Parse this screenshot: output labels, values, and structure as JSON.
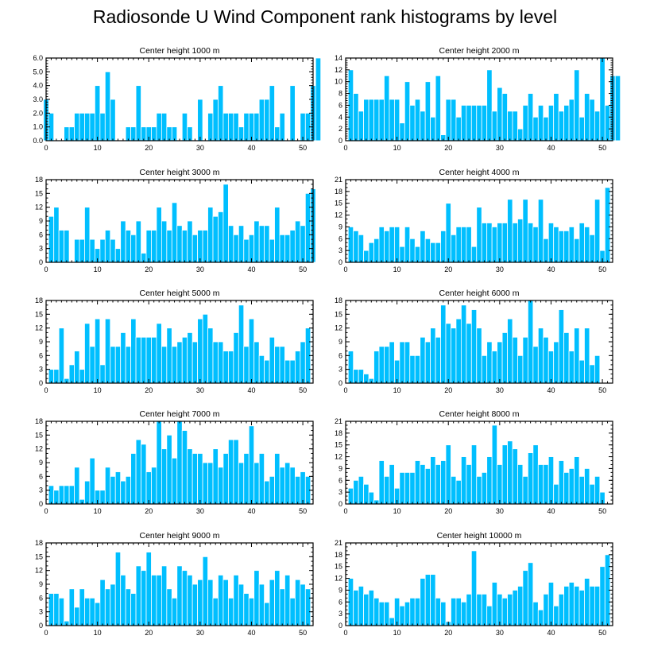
{
  "title": "Radiosonde U Wind Component rank histograms by level",
  "colors": {
    "bar": "#00bfff",
    "frame": "#000000",
    "bar_edge": "#ffffff"
  },
  "chart_data": [
    {
      "type": "bar",
      "title": "Center height 1000 m",
      "xlabel": "",
      "ylabel": "",
      "xlim": [
        0,
        52
      ],
      "ylim": [
        0,
        6
      ],
      "yticks": [
        "0.0",
        "1.0",
        "2.0",
        "3.0",
        "4.0",
        "5.0",
        "6.0"
      ],
      "yticks_val": [
        0,
        1,
        2,
        3,
        4,
        5,
        6
      ],
      "xticks": [
        0,
        10,
        20,
        30,
        40,
        50
      ],
      "values": [
        3,
        2,
        0,
        0,
        1,
        1,
        2,
        2,
        2,
        2,
        4,
        2,
        5,
        3,
        0,
        0,
        1,
        1,
        4,
        1,
        1,
        1,
        2,
        2,
        1,
        1,
        0,
        2,
        1,
        0,
        3,
        0,
        2,
        3,
        4,
        2,
        2,
        2,
        1,
        2,
        2,
        2,
        3,
        3,
        4,
        1,
        2,
        0,
        4,
        0,
        2,
        2,
        4,
        6
      ],
      "xstart": 0
    },
    {
      "type": "bar",
      "title": "Center height 2000 m",
      "xlabel": "",
      "ylabel": "",
      "xlim": [
        0,
        52
      ],
      "ylim": [
        0,
        14
      ],
      "yticks": [
        "0",
        "2",
        "4",
        "6",
        "8",
        "10",
        "12",
        "14"
      ],
      "yticks_val": [
        0,
        2,
        4,
        6,
        8,
        10,
        12,
        14
      ],
      "xticks": [
        0,
        10,
        20,
        30,
        40,
        50
      ],
      "values": [
        12,
        8,
        5,
        7,
        7,
        7,
        7,
        11,
        7,
        7,
        3,
        10,
        6,
        7,
        5,
        10,
        4,
        11,
        1,
        7,
        7,
        4,
        6,
        6,
        6,
        6,
        6,
        12,
        5,
        9,
        8,
        5,
        5,
        2,
        6,
        8,
        4,
        6,
        4,
        6,
        8,
        5,
        6,
        7,
        12,
        4,
        8,
        7,
        5,
        14,
        6,
        11,
        11
      ],
      "xstart": 1
    },
    {
      "type": "bar",
      "title": "Center height 3000 m",
      "xlabel": "",
      "ylabel": "",
      "xlim": [
        0,
        52
      ],
      "ylim": [
        0,
        18
      ],
      "yticks": [
        "0",
        "3",
        "6",
        "9",
        "12",
        "15",
        "18"
      ],
      "yticks_val": [
        0,
        3,
        6,
        9,
        12,
        15,
        18
      ],
      "xticks": [
        0,
        10,
        20,
        30,
        40,
        50
      ],
      "values": [
        10,
        12,
        7,
        7,
        0,
        5,
        5,
        12,
        5,
        3,
        5,
        7,
        5,
        3,
        9,
        7,
        6,
        9,
        2,
        7,
        7,
        12,
        9,
        7,
        13,
        8,
        7,
        9,
        6,
        7,
        7,
        12,
        10,
        11,
        17,
        8,
        6,
        8,
        5,
        6,
        9,
        8,
        8,
        5,
        12,
        6,
        6,
        7,
        9,
        8,
        15,
        16
      ],
      "xstart": 1
    },
    {
      "type": "bar",
      "title": "Center height 4000 m",
      "xlabel": "",
      "ylabel": "",
      "xlim": [
        0,
        52
      ],
      "ylim": [
        0,
        21
      ],
      "yticks": [
        "0",
        "3",
        "6",
        "9",
        "12",
        "15",
        "18",
        "21"
      ],
      "yticks_val": [
        0,
        3,
        6,
        9,
        12,
        15,
        18,
        21
      ],
      "xticks": [
        0,
        10,
        20,
        30,
        40,
        50
      ],
      "values": [
        9,
        8,
        7,
        3,
        5,
        6,
        9,
        8,
        9,
        9,
        4,
        9,
        6,
        4,
        8,
        6,
        5,
        5,
        8,
        15,
        7,
        9,
        9,
        9,
        4,
        14,
        10,
        10,
        9,
        10,
        10,
        16,
        10,
        11,
        16,
        10,
        9,
        16,
        6,
        10,
        9,
        8,
        8,
        9,
        6,
        10,
        9,
        7,
        16,
        3,
        19
      ],
      "xstart": 1
    },
    {
      "type": "bar",
      "title": "Center height 5000 m",
      "xlabel": "",
      "ylabel": "",
      "xlim": [
        0,
        52
      ],
      "ylim": [
        0,
        18
      ],
      "yticks": [
        "0",
        "3",
        "6",
        "9",
        "12",
        "15",
        "18"
      ],
      "yticks_val": [
        0,
        3,
        6,
        9,
        12,
        15,
        18
      ],
      "xticks": [
        0,
        10,
        20,
        30,
        40,
        50
      ],
      "values": [
        3,
        3,
        12,
        1,
        4,
        7,
        3,
        13,
        8,
        14,
        4,
        14,
        8,
        8,
        11,
        8,
        14,
        10,
        10,
        10,
        10,
        13,
        8,
        12,
        8,
        9,
        10,
        11,
        9,
        14,
        15,
        12,
        9,
        9,
        7,
        7,
        11,
        17,
        8,
        14,
        9,
        6,
        5,
        10,
        8,
        8,
        5,
        5,
        7,
        9,
        12
      ],
      "xstart": 1
    },
    {
      "type": "bar",
      "title": "Center height 6000 m",
      "xlabel": "",
      "ylabel": "",
      "xlim": [
        0,
        52
      ],
      "ylim": [
        0,
        18
      ],
      "yticks": [
        "0",
        "3",
        "6",
        "9",
        "12",
        "15",
        "18"
      ],
      "yticks_val": [
        0,
        3,
        6,
        9,
        12,
        15,
        18
      ],
      "xticks": [
        0,
        10,
        20,
        30,
        40,
        50
      ],
      "values": [
        7,
        3,
        3,
        2,
        1,
        7,
        8,
        8,
        9,
        5,
        9,
        9,
        6,
        6,
        10,
        9,
        12,
        10,
        17,
        13,
        12,
        14,
        17,
        13,
        16,
        12,
        6,
        9,
        7,
        9,
        11,
        14,
        10,
        6,
        10,
        18,
        8,
        12,
        10,
        7,
        9,
        16,
        11,
        7,
        12,
        5,
        12,
        4,
        6
      ],
      "xstart": 1
    },
    {
      "type": "bar",
      "title": "Center height 7000 m",
      "xlabel": "",
      "ylabel": "",
      "xlim": [
        0,
        52
      ],
      "ylim": [
        0,
        18
      ],
      "yticks": [
        "0",
        "3",
        "6",
        "9",
        "12",
        "15",
        "18"
      ],
      "yticks_val": [
        0,
        3,
        6,
        9,
        12,
        15,
        18
      ],
      "xticks": [
        0,
        10,
        20,
        30,
        40,
        50
      ],
      "values": [
        4,
        3,
        4,
        4,
        4,
        8,
        1,
        5,
        10,
        3,
        3,
        8,
        6,
        7,
        5,
        6,
        11,
        14,
        13,
        7,
        8,
        18,
        12,
        15,
        10,
        18,
        16,
        12,
        11,
        11,
        9,
        9,
        12,
        8,
        11,
        14,
        14,
        9,
        11,
        17,
        9,
        11,
        5,
        6,
        11,
        8,
        9,
        8,
        6,
        7,
        6
      ],
      "xstart": 1
    },
    {
      "type": "bar",
      "title": "Center height 8000 m",
      "xlabel": "",
      "ylabel": "",
      "xlim": [
        0,
        52
      ],
      "ylim": [
        0,
        21
      ],
      "yticks": [
        "0",
        "3",
        "6",
        "9",
        "12",
        "15",
        "18",
        "21"
      ],
      "yticks_val": [
        0,
        3,
        6,
        9,
        12,
        15,
        18,
        21
      ],
      "xticks": [
        0,
        10,
        20,
        30,
        40,
        50
      ],
      "values": [
        4,
        6,
        7,
        5,
        3,
        1,
        11,
        7,
        10,
        4,
        8,
        8,
        8,
        11,
        10,
        9,
        12,
        10,
        11,
        15,
        7,
        6,
        12,
        10,
        15,
        7,
        8,
        12,
        20,
        10,
        15,
        16,
        14,
        10,
        7,
        13,
        15,
        10,
        10,
        12,
        5,
        11,
        8,
        9,
        12,
        7,
        9,
        5,
        7,
        3
      ],
      "xstart": 1
    },
    {
      "type": "bar",
      "title": "Center height 9000 m",
      "xlabel": "",
      "ylabel": "",
      "xlim": [
        0,
        52
      ],
      "ylim": [
        0,
        18
      ],
      "yticks": [
        "0",
        "3",
        "6",
        "9",
        "12",
        "15",
        "18"
      ],
      "yticks_val": [
        0,
        3,
        6,
        9,
        12,
        15,
        18
      ],
      "xticks": [
        0,
        10,
        20,
        30,
        40,
        50
      ],
      "values": [
        7,
        7,
        6,
        1,
        8,
        4,
        8,
        6,
        6,
        5,
        10,
        8,
        9,
        16,
        11,
        8,
        7,
        13,
        12,
        16,
        11,
        11,
        13,
        8,
        6,
        13,
        12,
        11,
        9,
        10,
        15,
        10,
        6,
        11,
        10,
        6,
        11,
        9,
        7,
        6,
        12,
        9,
        5,
        10,
        12,
        8,
        11,
        6,
        10,
        9,
        8
      ],
      "xstart": 1
    },
    {
      "type": "bar",
      "title": "Center height 10000 m",
      "xlabel": "",
      "ylabel": "",
      "xlim": [
        0,
        52
      ],
      "ylim": [
        0,
        21
      ],
      "yticks": [
        "0",
        "3",
        "6",
        "9",
        "12",
        "15",
        "18",
        "21"
      ],
      "yticks_val": [
        0,
        3,
        6,
        9,
        12,
        15,
        18,
        21
      ],
      "xticks": [
        0,
        10,
        20,
        30,
        40,
        50
      ],
      "values": [
        12,
        9,
        10,
        8,
        9,
        7,
        6,
        6,
        2,
        7,
        5,
        6,
        7,
        7,
        12,
        13,
        13,
        7,
        6,
        1,
        7,
        7,
        6,
        8,
        19,
        8,
        8,
        5,
        11,
        8,
        7,
        8,
        9,
        10,
        14,
        16,
        6,
        4,
        8,
        11,
        5,
        8,
        10,
        11,
        10,
        9,
        12,
        10,
        10,
        15,
        18
      ],
      "xstart": 1
    }
  ]
}
